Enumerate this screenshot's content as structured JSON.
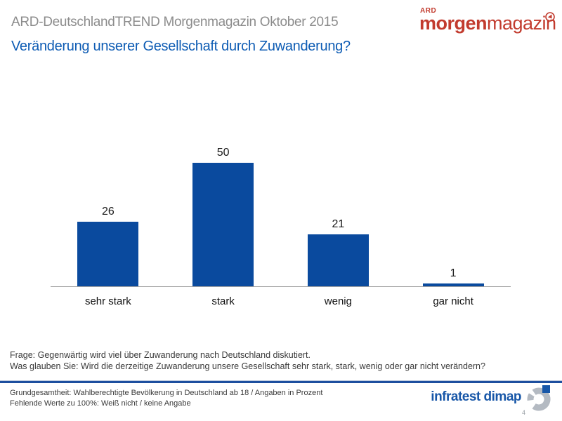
{
  "header": {
    "supertitle": "ARD-DeutschlandTREND Morgenmagazin Oktober 2015",
    "title": "Veränderung unserer Gesellschaft durch Zuwanderung?"
  },
  "morgenmagazin_logo": {
    "ard": "ARD",
    "bold_part": "morgen",
    "regular_part": "magazin",
    "color": "#c23b2e"
  },
  "chart_data": {
    "type": "bar",
    "categories": [
      "sehr stark",
      "stark",
      "wenig",
      "gar nicht"
    ],
    "values": [
      26,
      50,
      21,
      1
    ],
    "value_labels": true,
    "bar_color": "#0a4a9e",
    "axis_color": "#a3a3a3",
    "ylim": [
      0,
      55
    ],
    "grid": false,
    "legend": false,
    "title": "Veränderung unserer Gesellschaft durch Zuwanderung?",
    "xlabel": "",
    "ylabel": "",
    "unit": "Prozent"
  },
  "question": {
    "line1": "Frage: Gegenwärtig wird viel über Zuwanderung nach Deutschland diskutiert.",
    "line2": "Was glauben Sie: Wird die derzeitige Zuwanderung unsere Gesellschaft sehr stark, stark, wenig oder gar nicht verändern?"
  },
  "footer": {
    "line1": "Grundgesamtheit: Wahlberechtigte Bevölkerung in Deutschland ab 18 / Angaben in Prozent",
    "line2": "Fehlende Werte zu 100%: Weiß nicht / keine Angabe",
    "brand": "infratest dimap",
    "page_number": "4"
  }
}
